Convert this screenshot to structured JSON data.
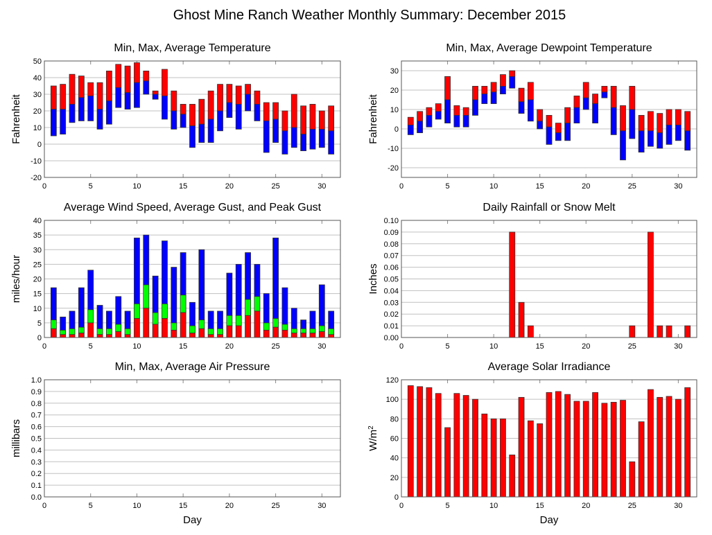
{
  "title": "Ghost Mine Ranch Weather Monthly Summary: December 2015",
  "colors": {
    "red": "#ff0000",
    "blue": "#0000ff",
    "green": "#00ff00",
    "grid": "#c0c0c0"
  },
  "chart_data": [
    {
      "id": "temp",
      "type": "bar",
      "title": "Min, Max, Average Temperature",
      "xlabel": "",
      "ylabel": "Fahrenheit",
      "xlim": [
        0,
        32
      ],
      "ylim": [
        -20,
        50
      ],
      "ystep": 10,
      "xstep": 5,
      "grid": true,
      "x": [
        1,
        2,
        3,
        4,
        5,
        6,
        7,
        8,
        9,
        10,
        11,
        12,
        13,
        14,
        15,
        16,
        17,
        18,
        19,
        20,
        21,
        22,
        23,
        24,
        25,
        26,
        27,
        28,
        29,
        30,
        31
      ],
      "series": [
        {
          "name": "Max",
          "color": "#ff0000",
          "values": [
            35,
            36,
            42,
            41,
            37,
            37,
            44,
            48,
            47,
            49,
            44,
            32,
            45,
            32,
            24,
            24,
            27,
            32,
            36,
            36,
            35,
            36,
            32,
            25,
            25,
            20,
            30,
            23,
            24,
            20,
            23
          ]
        },
        {
          "name": "Average",
          "values": [
            21,
            21,
            24,
            28,
            29,
            21,
            26,
            34,
            31,
            37,
            38,
            30,
            29,
            20,
            18,
            11,
            12,
            15,
            20,
            25,
            24,
            30,
            24,
            14,
            15,
            8,
            10,
            6,
            9,
            9,
            8
          ]
        },
        {
          "name": "Min",
          "color": "#0000ff",
          "values": [
            5,
            6,
            13,
            14,
            14,
            9,
            12,
            22,
            21,
            22,
            30,
            27,
            15,
            9,
            10,
            -2,
            1,
            1,
            8,
            16,
            9,
            20,
            14,
            -5,
            1,
            -6,
            -2,
            -4,
            -3,
            -2,
            -6
          ]
        }
      ]
    },
    {
      "id": "dew",
      "type": "bar",
      "title": "Min, Max, Average Dewpoint Temperature",
      "xlabel": "",
      "ylabel": "Fahrenheit",
      "xlim": [
        0,
        32
      ],
      "ylim": [
        -25,
        35
      ],
      "ystep": 10,
      "ystart": -20,
      "xstep": 5,
      "grid": true,
      "x": [
        1,
        2,
        3,
        4,
        5,
        6,
        7,
        8,
        9,
        10,
        11,
        12,
        13,
        14,
        15,
        16,
        17,
        18,
        19,
        20,
        21,
        22,
        23,
        24,
        25,
        26,
        27,
        28,
        29,
        30,
        31
      ],
      "series": [
        {
          "name": "Max",
          "color": "#ff0000",
          "values": [
            6,
            9,
            11,
            13,
            27,
            12,
            11,
            22,
            22,
            24,
            28,
            30,
            21,
            24,
            10,
            7,
            3,
            11,
            17,
            24,
            18,
            22,
            22,
            12,
            22,
            7,
            9,
            8,
            10,
            10,
            9
          ]
        },
        {
          "name": "Average",
          "values": [
            2,
            4,
            7,
            9,
            15,
            7,
            7,
            15,
            18,
            19,
            22,
            27,
            14,
            15,
            4,
            1,
            -2,
            3,
            11,
            16,
            13,
            19,
            11,
            -1,
            10,
            -1,
            -1,
            -2,
            2,
            2,
            -1
          ]
        },
        {
          "name": "Min",
          "color": "#0000ff",
          "values": [
            -3,
            -2,
            1,
            5,
            3,
            1,
            1,
            7,
            13,
            13,
            18,
            21,
            8,
            4,
            0,
            -8,
            -6,
            -6,
            3,
            10,
            3,
            16,
            -3,
            -16,
            -5,
            -12,
            -9,
            -10,
            -8,
            -6,
            -11
          ]
        }
      ]
    },
    {
      "id": "wind",
      "type": "bar",
      "title": "Average Wind Speed, Average Gust, and Peak Gust",
      "xlabel": "",
      "ylabel": "miles/hour",
      "xlim": [
        0,
        32
      ],
      "ylim": [
        0,
        40
      ],
      "ystep": 5,
      "xstep": 5,
      "grid": true,
      "x": [
        1,
        2,
        3,
        4,
        5,
        6,
        7,
        8,
        9,
        10,
        11,
        12,
        13,
        14,
        15,
        16,
        17,
        18,
        19,
        20,
        21,
        22,
        23,
        24,
        25,
        26,
        27,
        28,
        29,
        30,
        31
      ],
      "series": [
        {
          "name": "Peak Gust",
          "color": "#0000ff",
          "values": [
            17,
            7,
            9,
            17,
            23,
            11,
            9,
            14,
            9,
            34,
            35,
            21,
            33,
            24,
            29,
            12,
            30,
            9,
            9,
            22,
            25,
            29,
            25,
            15,
            34,
            17,
            10,
            6,
            9,
            18,
            9
          ]
        },
        {
          "name": "Average Gust",
          "color": "#00ff00",
          "values": [
            6,
            2.5,
            3,
            3.5,
            9.5,
            3,
            3,
            4.5,
            3,
            11.5,
            18,
            8.5,
            11.5,
            5,
            14.5,
            4,
            6,
            3,
            3,
            7.5,
            7.5,
            13,
            14,
            5,
            6.5,
            4.5,
            3,
            3,
            3,
            4,
            3
          ]
        },
        {
          "name": "Average Wind Speed",
          "color": "#ff0000",
          "values": [
            3,
            1,
            1,
            1.5,
            5,
            1,
            1,
            2,
            1,
            6.5,
            10,
            4.5,
            6.5,
            2.5,
            8.5,
            1.5,
            3,
            1,
            1,
            4,
            4,
            7.5,
            9,
            2.5,
            3.5,
            2.5,
            1.5,
            1.5,
            1.5,
            2,
            1
          ]
        }
      ]
    },
    {
      "id": "rain",
      "type": "bar",
      "title": "Daily Rainfall or Snow Melt",
      "xlabel": "",
      "ylabel": "Inches",
      "xlim": [
        0,
        32
      ],
      "ylim": [
        0,
        0.1
      ],
      "ystep": 0.01,
      "decimals": 2,
      "xstep": 5,
      "grid": true,
      "x": [
        12,
        13,
        14,
        25,
        27,
        28,
        29,
        31
      ],
      "series": [
        {
          "name": "Rainfall",
          "color": "#ff0000",
          "values": [
            0.09,
            0.03,
            0.01,
            0.01,
            0.09,
            0.01,
            0.01,
            0.01
          ]
        }
      ]
    },
    {
      "id": "pressure",
      "type": "bar",
      "title": "Min, Max, Average Air Pressure",
      "xlabel": "Day",
      "ylabel": "millibars",
      "xlim": [
        0,
        32
      ],
      "ylim": [
        0,
        1
      ],
      "ystep": 0.1,
      "decimals": 1,
      "xstep": 5,
      "grid": true,
      "x": [],
      "series": []
    },
    {
      "id": "solar",
      "type": "bar",
      "title": "Average Solar Irradiance",
      "xlabel": "Day",
      "ylabel": "W/m",
      "ylabel_sup": "2",
      "xlim": [
        0,
        32
      ],
      "ylim": [
        0,
        120
      ],
      "ystep": 20,
      "xstep": 5,
      "grid": true,
      "x": [
        1,
        2,
        3,
        4,
        5,
        6,
        7,
        8,
        9,
        10,
        11,
        12,
        13,
        14,
        15,
        16,
        17,
        18,
        19,
        20,
        21,
        22,
        23,
        24,
        25,
        26,
        27,
        28,
        29,
        30,
        31
      ],
      "series": [
        {
          "name": "Solar Irradiance",
          "color": "#ff0000",
          "values": [
            114,
            113,
            112,
            106,
            71,
            106,
            104,
            100,
            85,
            80,
            80,
            43,
            102,
            78,
            75,
            107,
            108,
            105,
            98,
            98,
            107,
            96,
            97,
            99,
            36,
            77,
            110,
            102,
            103,
            100,
            112
          ]
        }
      ]
    }
  ]
}
